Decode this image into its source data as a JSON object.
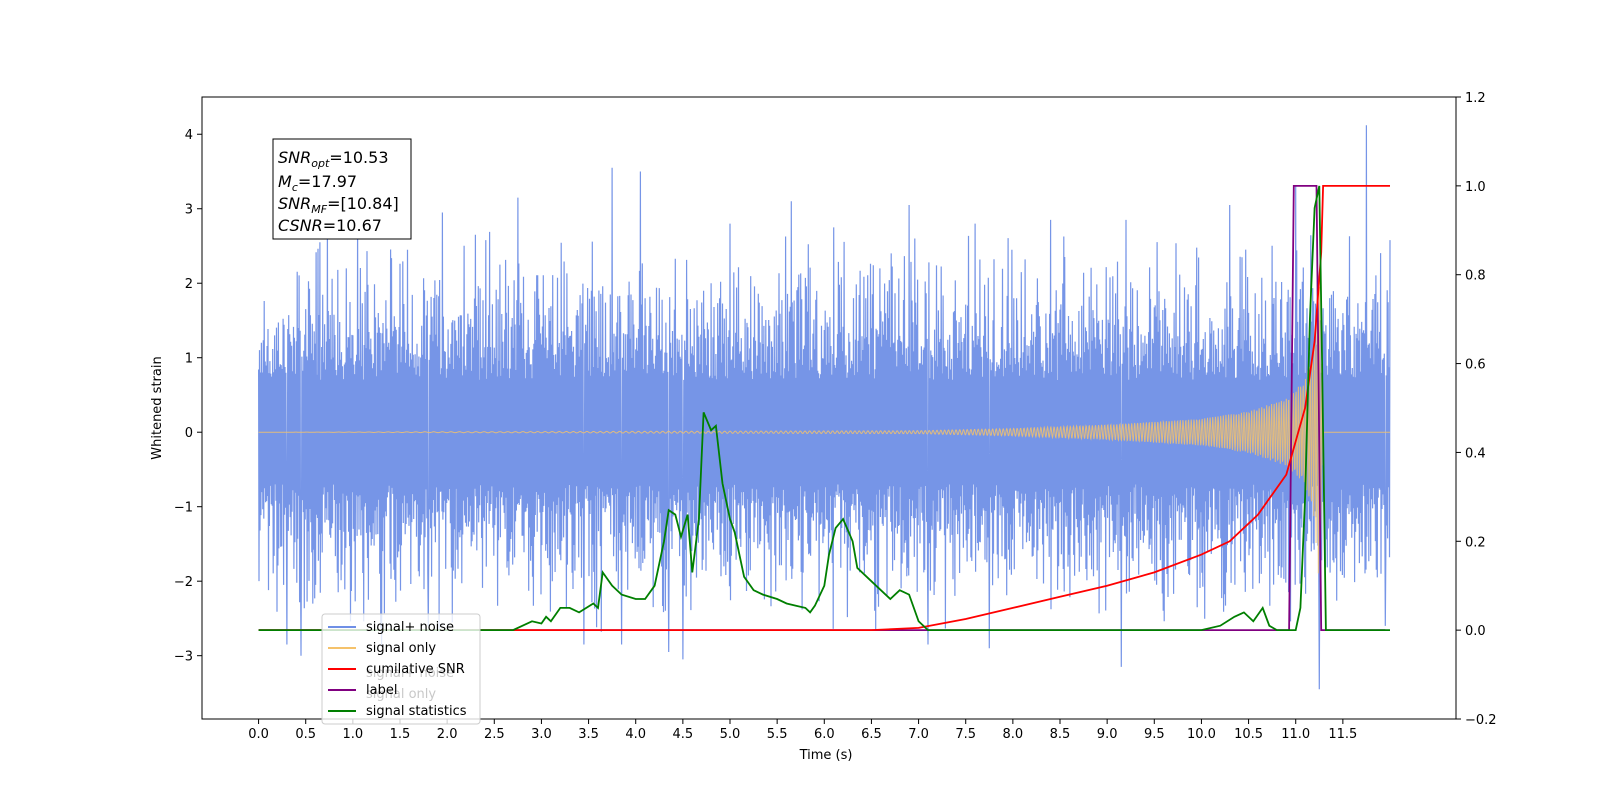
{
  "chart_data": {
    "type": "line",
    "xlabel": "Time (s)",
    "ylabel": "Whitened strain",
    "xlim": [
      -0.6,
      12.7
    ],
    "ylim": [
      -3.85,
      4.5
    ],
    "y2lim": [
      -0.2,
      1.2
    ],
    "x_ticks": [
      "0.0",
      "0.5",
      "1.0",
      "1.5",
      "2.0",
      "2.5",
      "3.0",
      "3.5",
      "4.0",
      "4.5",
      "5.0",
      "5.5",
      "6.0",
      "6.5",
      "7.0",
      "7.5",
      "8.0",
      "8.5",
      "9.0",
      "9.5",
      "10.0",
      "10.5",
      "11.0",
      "11.5"
    ],
    "y_ticks": [
      "−3",
      "−2",
      "−1",
      "0",
      "1",
      "2",
      "3",
      "4"
    ],
    "y2_ticks": [
      "−0.2",
      "0.0",
      "0.2",
      "0.4",
      "0.6",
      "0.8",
      "1.0",
      "1.2"
    ],
    "annotation": {
      "snr_opt": "=10.53",
      "mc": "=17.97",
      "snr_mf": "=[10.84]",
      "csnr": "=10.67"
    },
    "legend": {
      "placement": "lower-left",
      "entries": [
        {
          "label": "signal+ noise",
          "color": "#6f8fe6"
        },
        {
          "label": "signal only",
          "color": "#f5c26b"
        },
        {
          "label": "cumilative SNR",
          "color": "#ff0000"
        },
        {
          "label": "label",
          "color": "#800080"
        },
        {
          "label": "signal statistics",
          "color": "#007f00"
        }
      ],
      "ghost_labels": [
        "signal+ noise",
        "signal only"
      ]
    },
    "series": [
      {
        "name": "signal+ noise",
        "axis": "left",
        "x_range": [
          0.0,
          12.0
        ],
        "band_min_max": [
          -2.0,
          2.0
        ],
        "upper_spikes": [
          [
            0.65,
            2.55
          ],
          [
            1.05,
            2.85
          ],
          [
            1.95,
            2.95
          ],
          [
            2.3,
            2.65
          ],
          [
            2.75,
            3.15
          ],
          [
            3.75,
            3.55
          ],
          [
            4.05,
            3.5
          ],
          [
            5.0,
            2.8
          ],
          [
            5.65,
            3.1
          ],
          [
            6.1,
            2.75
          ],
          [
            6.9,
            3.05
          ],
          [
            7.6,
            2.8
          ],
          [
            8.4,
            2.85
          ],
          [
            9.2,
            2.85
          ],
          [
            10.3,
            3.05
          ],
          [
            11.0,
            3.3
          ],
          [
            11.75,
            4.12
          ],
          [
            11.95,
            2.6
          ]
        ],
        "lower_spikes": [
          [
            0.3,
            -2.85
          ],
          [
            0.45,
            -3.0
          ],
          [
            1.8,
            -2.6
          ],
          [
            3.45,
            -2.85
          ],
          [
            3.85,
            -2.85
          ],
          [
            4.35,
            -2.95
          ],
          [
            4.5,
            -3.05
          ],
          [
            7.1,
            -2.85
          ],
          [
            7.75,
            -2.9
          ],
          [
            9.15,
            -3.15
          ],
          [
            11.25,
            -3.45
          ],
          [
            11.95,
            -2.6
          ]
        ]
      },
      {
        "name": "signal only",
        "axis": "left",
        "envelope": [
          [
            0.0,
            0.0
          ],
          [
            7.0,
            0.02
          ],
          [
            8.0,
            0.05
          ],
          [
            9.0,
            0.1
          ],
          [
            10.0,
            0.18
          ],
          [
            10.5,
            0.28
          ],
          [
            10.9,
            0.45
          ],
          [
            11.1,
            0.7
          ],
          [
            11.2,
            1.2
          ],
          [
            11.25,
            2.1
          ],
          [
            11.3,
            0.0
          ],
          [
            12.0,
            0.0
          ]
        ]
      },
      {
        "name": "cumilative SNR",
        "axis": "right",
        "points": [
          [
            0.0,
            0.0
          ],
          [
            6.5,
            0.0
          ],
          [
            7.0,
            0.005
          ],
          [
            7.5,
            0.025
          ],
          [
            8.0,
            0.05
          ],
          [
            8.5,
            0.075
          ],
          [
            9.0,
            0.1
          ],
          [
            9.5,
            0.13
          ],
          [
            10.0,
            0.17
          ],
          [
            10.3,
            0.2
          ],
          [
            10.6,
            0.26
          ],
          [
            10.9,
            0.35
          ],
          [
            11.1,
            0.5
          ],
          [
            11.2,
            0.65
          ],
          [
            11.27,
            0.85
          ],
          [
            11.29,
            1.0
          ],
          [
            12.0,
            1.0
          ]
        ]
      },
      {
        "name": "label",
        "axis": "right",
        "points": [
          [
            0.0,
            0.0
          ],
          [
            10.93,
            0.0
          ],
          [
            10.98,
            1.0
          ],
          [
            11.22,
            1.0
          ],
          [
            11.27,
            0.0
          ],
          [
            11.95,
            0.0
          ]
        ]
      },
      {
        "name": "signal statistics",
        "axis": "right",
        "points": [
          [
            0.0,
            0.0
          ],
          [
            2.7,
            0.0
          ],
          [
            2.9,
            0.02
          ],
          [
            3.0,
            0.015
          ],
          [
            3.05,
            0.03
          ],
          [
            3.1,
            0.02
          ],
          [
            3.2,
            0.05
          ],
          [
            3.3,
            0.05
          ],
          [
            3.4,
            0.04
          ],
          [
            3.55,
            0.06
          ],
          [
            3.6,
            0.05
          ],
          [
            3.65,
            0.13
          ],
          [
            3.75,
            0.1
          ],
          [
            3.85,
            0.08
          ],
          [
            4.0,
            0.07
          ],
          [
            4.1,
            0.07
          ],
          [
            4.2,
            0.1
          ],
          [
            4.3,
            0.2
          ],
          [
            4.35,
            0.27
          ],
          [
            4.42,
            0.26
          ],
          [
            4.48,
            0.21
          ],
          [
            4.55,
            0.26
          ],
          [
            4.6,
            0.13
          ],
          [
            4.67,
            0.25
          ],
          [
            4.72,
            0.49
          ],
          [
            4.8,
            0.45
          ],
          [
            4.85,
            0.46
          ],
          [
            4.92,
            0.33
          ],
          [
            5.0,
            0.25
          ],
          [
            5.05,
            0.22
          ],
          [
            5.15,
            0.12
          ],
          [
            5.25,
            0.09
          ],
          [
            5.35,
            0.08
          ],
          [
            5.5,
            0.07
          ],
          [
            5.6,
            0.06
          ],
          [
            5.7,
            0.055
          ],
          [
            5.8,
            0.05
          ],
          [
            5.85,
            0.04
          ],
          [
            5.9,
            0.055
          ],
          [
            6.0,
            0.1
          ],
          [
            6.05,
            0.17
          ],
          [
            6.12,
            0.23
          ],
          [
            6.2,
            0.25
          ],
          [
            6.3,
            0.2
          ],
          [
            6.35,
            0.14
          ],
          [
            6.45,
            0.12
          ],
          [
            6.55,
            0.1
          ],
          [
            6.7,
            0.07
          ],
          [
            6.8,
            0.09
          ],
          [
            6.9,
            0.08
          ],
          [
            7.0,
            0.02
          ],
          [
            7.1,
            0.0
          ],
          [
            10.0,
            0.0
          ],
          [
            10.2,
            0.01
          ],
          [
            10.35,
            0.03
          ],
          [
            10.45,
            0.04
          ],
          [
            10.55,
            0.02
          ],
          [
            10.65,
            0.05
          ],
          [
            10.72,
            0.01
          ],
          [
            10.8,
            0.0
          ],
          [
            11.0,
            0.0
          ],
          [
            11.05,
            0.05
          ],
          [
            11.1,
            0.3
          ],
          [
            11.15,
            0.7
          ],
          [
            11.2,
            0.95
          ],
          [
            11.25,
            1.0
          ],
          [
            11.28,
            0.6
          ],
          [
            11.32,
            0.0
          ],
          [
            12.0,
            0.0
          ]
        ]
      }
    ]
  }
}
